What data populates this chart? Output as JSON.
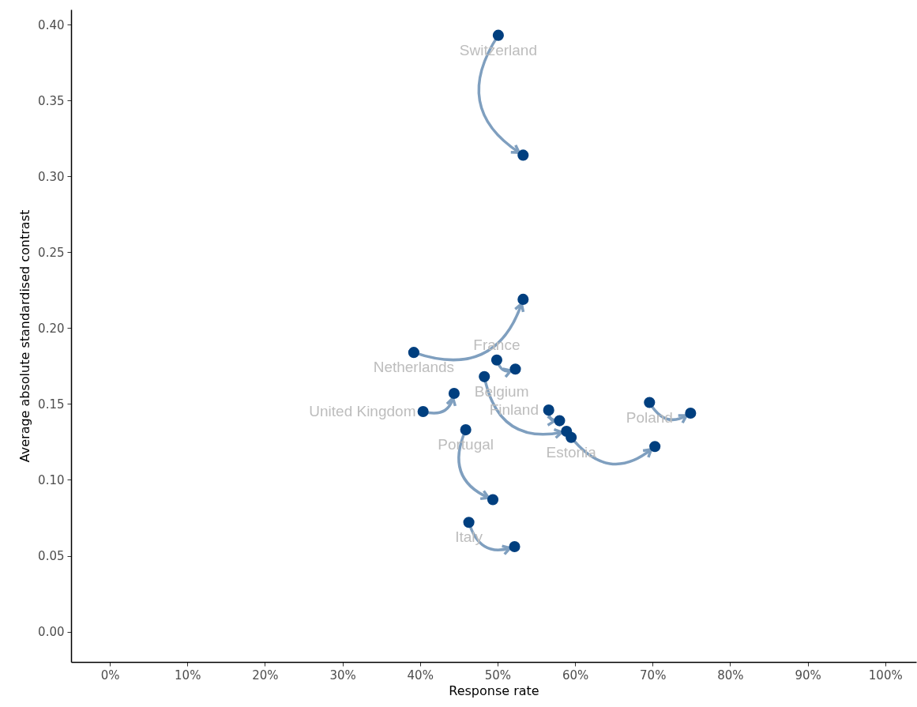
{
  "chart_data": {
    "type": "scatter",
    "xlabel": "Response rate",
    "ylabel": "Average absolute standardised contrast",
    "xlim": [
      -5,
      104
    ],
    "ylim": [
      -0.02,
      0.41
    ],
    "xticks": [
      {
        "value": 0,
        "label": "0%"
      },
      {
        "value": 10,
        "label": "10%"
      },
      {
        "value": 20,
        "label": "20%"
      },
      {
        "value": 30,
        "label": "30%"
      },
      {
        "value": 40,
        "label": "40%"
      },
      {
        "value": 50,
        "label": "50%"
      },
      {
        "value": 60,
        "label": "60%"
      },
      {
        "value": 70,
        "label": "70%"
      },
      {
        "value": 80,
        "label": "80%"
      },
      {
        "value": 90,
        "label": "90%"
      },
      {
        "value": 100,
        "label": "100%"
      }
    ],
    "yticks": [
      {
        "value": 0,
        "label": "0.00"
      },
      0.05,
      {
        "value": 0.1,
        "label": "0.10"
      },
      0.15,
      {
        "value": 0.2,
        "label": "0.20"
      },
      0.25,
      {
        "value": 0.3,
        "label": "0.30"
      },
      0.35,
      {
        "value": 0.4,
        "label": "0.40"
      }
    ],
    "grid": false,
    "marker": "circle",
    "series": [
      {
        "name": "Switzerland",
        "color": "#003f7f",
        "x": [
          50.1,
          53.3
        ],
        "values": [
          0.393,
          0.314
        ]
      },
      {
        "name": "Netherlands",
        "color": "#003f7f",
        "x": [
          39.2,
          53.3
        ],
        "values": [
          0.184,
          0.219
        ]
      },
      {
        "name": "France",
        "color": "#003f7f",
        "x": [
          49.9,
          52.3
        ],
        "values": [
          0.179,
          0.173
        ]
      },
      {
        "name": "Belgium",
        "color": "#003f7f",
        "x": [
          48.3,
          58.9
        ],
        "values": [
          0.168,
          0.132
        ]
      },
      {
        "name": "United Kingdom",
        "color": "#003f7f",
        "x": [
          40.4,
          44.4
        ],
        "values": [
          0.145,
          0.157
        ]
      },
      {
        "name": "Finland",
        "color": "#003f7f",
        "x": [
          56.6,
          58.0
        ],
        "values": [
          0.146,
          0.139
        ]
      },
      {
        "name": "Poland",
        "color": "#003f7f",
        "x": [
          69.6,
          74.9
        ],
        "values": [
          0.151,
          0.144
        ]
      },
      {
        "name": "Portugal",
        "color": "#003f7f",
        "x": [
          45.9,
          49.4
        ],
        "values": [
          0.133,
          0.087
        ]
      },
      {
        "name": "Estonia",
        "color": "#003f7f",
        "x": [
          59.5,
          70.3
        ],
        "values": [
          0.128,
          0.122
        ]
      },
      {
        "name": "Italy",
        "color": "#003f7f",
        "x": [
          46.3,
          52.2
        ],
        "values": [
          0.072,
          0.056
        ]
      }
    ]
  }
}
